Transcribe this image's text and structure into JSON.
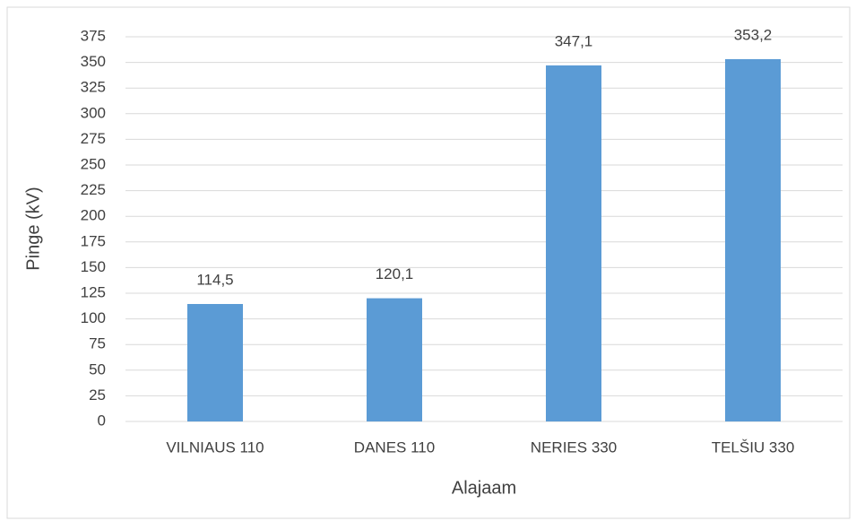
{
  "chart_data": {
    "type": "bar",
    "categories": [
      "VILNIAUS 110",
      "DANES 110",
      "NERIES 330",
      "TELŠIU 330"
    ],
    "values": [
      114.5,
      120.1,
      347.1,
      353.2
    ],
    "value_labels": [
      "114,5",
      "120,1",
      "347,1",
      "353,2"
    ],
    "color": "#5b9bd5",
    "ylim": [
      0,
      375
    ],
    "yticks": [
      0,
      25,
      50,
      75,
      100,
      125,
      150,
      175,
      200,
      225,
      250,
      275,
      300,
      325,
      350,
      375
    ],
    "grid": true,
    "xlabel": "Alajaam",
    "ylabel": "Pinge (kV)"
  }
}
